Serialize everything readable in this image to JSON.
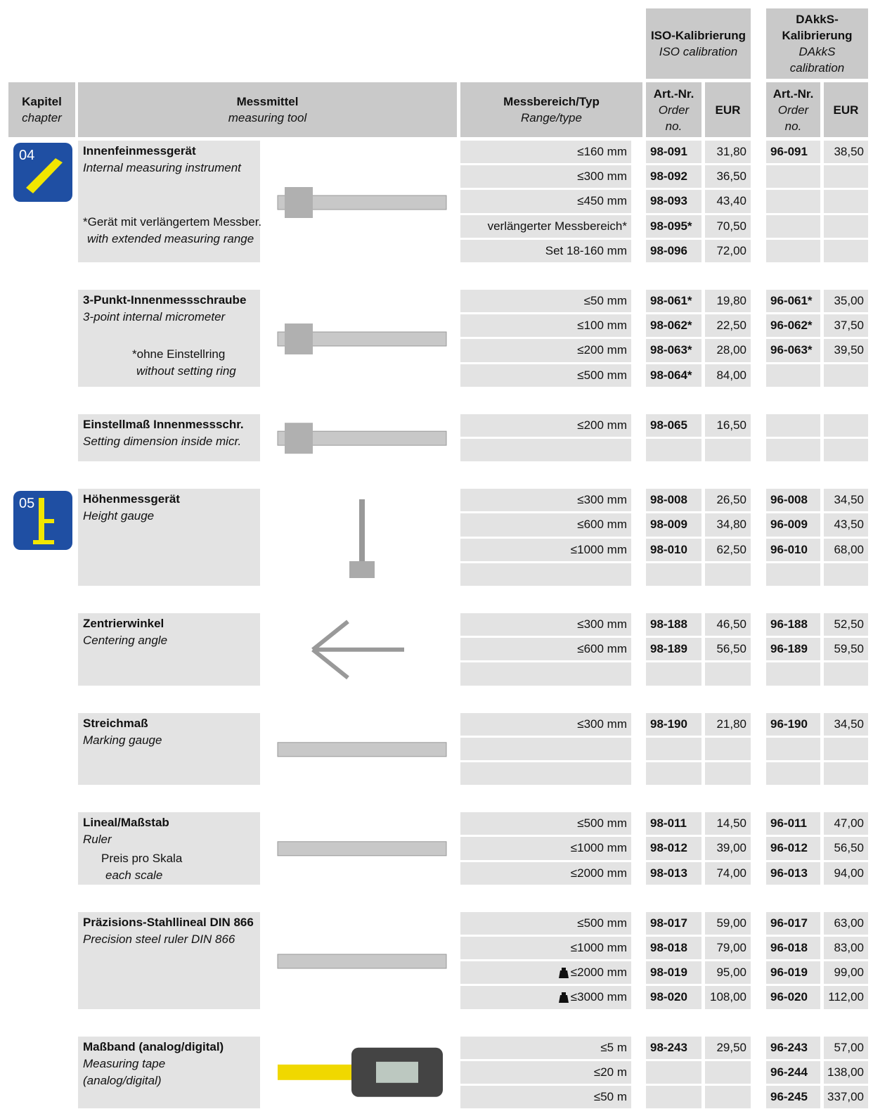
{
  "header": {
    "iso": {
      "title": "ISO-Kalibrierung",
      "subtitle": "ISO calibration"
    },
    "dakks": {
      "title": "DAkkS-\nKalibrierung",
      "subtitle": "DAkkS\ncalibration"
    }
  },
  "columns": {
    "kapitel": {
      "de": "Kapitel",
      "en": "chapter"
    },
    "messmittel": {
      "de": "Messmittel",
      "en": "measuring tool"
    },
    "messbereich": {
      "de": "Messbereich/Typ",
      "en": "Range/type"
    },
    "artnr": {
      "de": "Art.-Nr.",
      "en": "Order\nno."
    },
    "eur": "EUR"
  },
  "groups": [
    {
      "chapter": "04",
      "name": "Innenfeinmessgerät",
      "name_en": "Internal measuring instrument",
      "note": "*Gerät mit verlängertem Messber.",
      "note_en": "with extended measuring range",
      "rows": [
        [
          "≤160 mm",
          "98-091",
          "31,80",
          "96-091",
          "38,50"
        ],
        [
          "≤300 mm",
          "98-092",
          "36,50",
          null,
          null
        ],
        [
          "≤450 mm",
          "98-093",
          "43,40",
          null,
          null
        ],
        [
          "verlängerter Messbereich*",
          "98-095*",
          "70,50",
          null,
          null
        ],
        [
          "Set 18-160 mm",
          "98-096",
          "72,00",
          null,
          null
        ]
      ]
    },
    {
      "name": "3-Punkt-Innenmessschraube",
      "name_en": "3-point internal micrometer",
      "note": "*ohne Einstellring",
      "note_en": "without setting ring",
      "rows": [
        [
          "≤50 mm",
          "98-061*",
          "19,80",
          "96-061*",
          "35,00"
        ],
        [
          "≤100 mm",
          "98-062*",
          "22,50",
          "96-062*",
          "37,50"
        ],
        [
          "≤200 mm",
          "98-063*",
          "28,00",
          "96-063*",
          "39,50"
        ],
        [
          "≤500 mm",
          "98-064*",
          "84,00",
          null,
          null
        ]
      ]
    },
    {
      "name": "Einstellmaß Innenmessschr.",
      "name_en": "Setting dimension inside micr.",
      "rows": [
        [
          "≤200 mm",
          "98-065",
          "16,50",
          null,
          null
        ],
        [
          null,
          null,
          null,
          null,
          null
        ]
      ]
    },
    {
      "chapter": "05",
      "name": "Höhenmessgerät",
      "name_en": "Height gauge",
      "rows": [
        [
          "≤300 mm",
          "98-008",
          "26,50",
          "96-008",
          "34,50"
        ],
        [
          "≤600 mm",
          "98-009",
          "34,80",
          "96-009",
          "43,50"
        ],
        [
          "≤1000 mm",
          "98-010",
          "62,50",
          "96-010",
          "68,00"
        ],
        [
          null,
          null,
          null,
          null,
          null
        ]
      ]
    },
    {
      "name": "Zentrierwinkel",
      "name_en": "Centering angle",
      "rows": [
        [
          "≤300 mm",
          "98-188",
          "46,50",
          "96-188",
          "52,50"
        ],
        [
          "≤600 mm",
          "98-189",
          "56,50",
          "96-189",
          "59,50"
        ],
        [
          null,
          null,
          null,
          null,
          null
        ]
      ]
    },
    {
      "name": "Streichmaß",
      "name_en": "Marking gauge",
      "rows": [
        [
          "≤300 mm",
          "98-190",
          "21,80",
          "96-190",
          "34,50"
        ],
        [
          null,
          null,
          null,
          null,
          null
        ],
        [
          null,
          null,
          null,
          null,
          null
        ]
      ]
    },
    {
      "name": "Lineal/Maßstab",
      "name_en": "Ruler",
      "note": "Preis pro Skala",
      "note_en": "each scale",
      "rows": [
        [
          "≤500 mm",
          "98-011",
          "14,50",
          "96-011",
          "47,00"
        ],
        [
          "≤1000 mm",
          "98-012",
          "39,00",
          "96-012",
          "56,50"
        ],
        [
          "≤2000 mm",
          "98-013",
          "74,00",
          "96-013",
          "94,00"
        ]
      ]
    },
    {
      "name": "Präzisions-Stahllineal DIN 866",
      "name_en": "Precision steel ruler DIN 866",
      "weight_icon_rows": [
        2,
        3
      ],
      "rows": [
        [
          "≤500 mm",
          "98-017",
          "59,00",
          "96-017",
          "63,00"
        ],
        [
          "≤1000 mm",
          "98-018",
          "79,00",
          "96-018",
          "83,00"
        ],
        [
          "≤2000 mm",
          "98-019",
          "95,00",
          "96-019",
          "99,00"
        ],
        [
          "≤3000 mm",
          "98-020",
          "108,00",
          "96-020",
          "112,00"
        ]
      ]
    },
    {
      "name": "Maßband (analog/digital)",
      "name_en": "Measuring tape\n(analog/digital)",
      "rows": [
        [
          "≤5 m",
          "98-243",
          "29,50",
          "96-243",
          "57,00"
        ],
        [
          "≤20 m",
          null,
          null,
          "96-244",
          "138,00"
        ],
        [
          "≤50 m",
          null,
          null,
          "96-245",
          "337,00"
        ]
      ]
    }
  ]
}
